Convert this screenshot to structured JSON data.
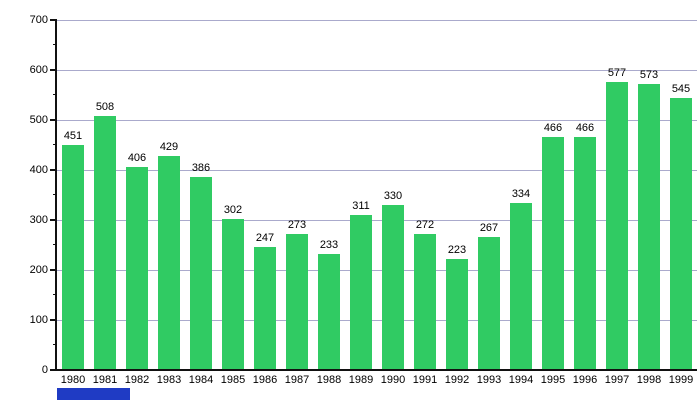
{
  "chart_data": {
    "type": "bar",
    "title": "",
    "xlabel": "",
    "ylabel": "",
    "categories": [
      "1980",
      "1981",
      "1982",
      "1983",
      "1984",
      "1985",
      "1986",
      "1987",
      "1988",
      "1989",
      "1990",
      "1991",
      "1992",
      "1993",
      "1994",
      "1995",
      "1996",
      "1997",
      "1998",
      "1999"
    ],
    "values": [
      451,
      508,
      406,
      429,
      386,
      302,
      247,
      273,
      233,
      311,
      330,
      272,
      223,
      267,
      334,
      466,
      466,
      577,
      573,
      545
    ],
    "data_labels_shown": true,
    "ylim": [
      0,
      700
    ],
    "y_major_step": 100,
    "y_minor_step": 50,
    "y_tick_labels": [
      "0",
      "100",
      "200",
      "300",
      "400",
      "500",
      "600",
      "700"
    ],
    "grid": true,
    "legend_position": "none",
    "bar_color": "#30CB63",
    "gridline_color": "#AAAACC",
    "axis_color": "#111111",
    "label_color": "#000000"
  },
  "decorations": {
    "bottom_left_bar_color": "#1F3BC4"
  }
}
